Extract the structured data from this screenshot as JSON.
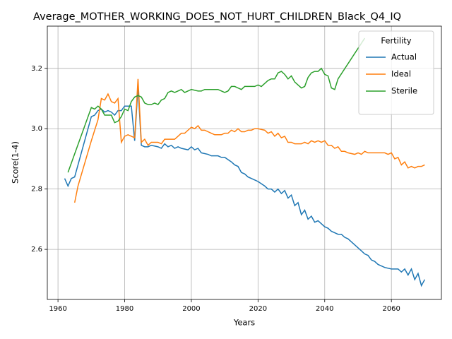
{
  "chart_data": {
    "type": "line",
    "title": "Average_MOTHER_WORKING_DOES_NOT_HURT_CHILDREN_Black_Q4_IQ",
    "xlabel": "Years",
    "ylabel": "Score(1-4)",
    "xlim": [
      1956.8,
      2075.0
    ],
    "ylim": [
      2.434,
      3.34
    ],
    "xticks": [
      1960,
      1980,
      2000,
      2020,
      2040,
      2060
    ],
    "yticks": [
      2.6,
      2.8,
      {
        "value": 3,
        "label": "3.0"
      },
      3.2
    ],
    "grid": true,
    "legend_title": "Fertility",
    "legend_loc": "upper right",
    "series": [
      {
        "name": "Actual",
        "color": "#1f77b4",
        "x": [
          1962,
          1963,
          1964,
          1965,
          1966,
          1970,
          1971,
          1972,
          1973,
          1974,
          1975,
          1976,
          1977,
          1978,
          1979,
          1980,
          1981,
          1982,
          1983,
          1984,
          1985,
          1986,
          1987,
          1988,
          1990,
          1991,
          1992,
          1993,
          1994,
          1995,
          1996,
          1997,
          1999,
          2000,
          2001,
          2002,
          2003,
          2005,
          2006,
          2008,
          2009,
          2010,
          2012,
          2013,
          2014,
          2015,
          2016,
          2017,
          2018,
          2019,
          2020,
          2022,
          2023,
          2024,
          2025,
          2026,
          2027,
          2028,
          2029,
          2030,
          2031,
          2032,
          2033,
          2034,
          2035,
          2036,
          2037,
          2038,
          2040,
          2041,
          2042,
          2043,
          2044,
          2045,
          2046,
          2047,
          2048,
          2049,
          2050,
          2051,
          2052,
          2053,
          2054,
          2055,
          2056,
          2057,
          2058,
          2060,
          2061,
          2062,
          2063,
          2064,
          2065,
          2066,
          2067,
          2068,
          2069,
          2070
        ],
        "values": [
          2.835,
          2.81,
          2.835,
          2.84,
          2.88,
          3.04,
          3.045,
          3.06,
          3.065,
          3.055,
          3.06,
          3.055,
          3.045,
          3.06,
          3.06,
          3.075,
          3.075,
          3.075,
          2.96,
          3.14,
          2.945,
          2.94,
          2.94,
          2.945,
          2.94,
          2.935,
          2.95,
          2.94,
          2.945,
          2.935,
          2.94,
          2.935,
          2.93,
          2.94,
          2.93,
          2.935,
          2.92,
          2.915,
          2.91,
          2.91,
          2.905,
          2.905,
          2.89,
          2.88,
          2.875,
          2.855,
          2.85,
          2.84,
          2.835,
          2.83,
          2.825,
          2.81,
          2.8,
          2.8,
          2.79,
          2.8,
          2.785,
          2.795,
          2.77,
          2.78,
          2.745,
          2.755,
          2.715,
          2.73,
          2.7,
          2.71,
          2.69,
          2.695,
          2.675,
          2.67,
          2.66,
          2.655,
          2.65,
          2.65,
          2.64,
          2.635,
          2.625,
          2.615,
          2.605,
          2.595,
          2.585,
          2.58,
          2.565,
          2.56,
          2.55,
          2.545,
          2.54,
          2.535,
          2.535,
          2.535,
          2.525,
          2.535,
          2.515,
          2.535,
          2.5,
          2.52,
          2.48,
          2.5
        ]
      },
      {
        "name": "Ideal",
        "color": "#ff7f0e",
        "x": [
          1965,
          1966,
          1970,
          1972,
          1973,
          1974,
          1975,
          1976,
          1977,
          1978,
          1979,
          1980,
          1981,
          1982,
          1983,
          1984,
          1985,
          1986,
          1987,
          1988,
          1990,
          1991,
          1992,
          1994,
          1995,
          1996,
          1997,
          1998,
          1999,
          2000,
          2001,
          2002,
          2003,
          2004,
          2005,
          2006,
          2007,
          2009,
          2010,
          2011,
          2012,
          2013,
          2014,
          2015,
          2016,
          2017,
          2018,
          2019,
          2020,
          2022,
          2023,
          2024,
          2025,
          2026,
          2027,
          2028,
          2029,
          2030,
          2031,
          2033,
          2034,
          2035,
          2036,
          2037,
          2038,
          2039,
          2040,
          2041,
          2042,
          2043,
          2044,
          2045,
          2046,
          2047,
          2049,
          2050,
          2051,
          2052,
          2053,
          2055,
          2057,
          2058,
          2059,
          2060,
          2061,
          2062,
          2063,
          2064,
          2065,
          2066,
          2067,
          2068,
          2069,
          2070
        ],
        "values": [
          2.755,
          2.81,
          2.96,
          3.03,
          3.1,
          3.095,
          3.115,
          3.09,
          3.085,
          3.1,
          2.955,
          2.975,
          2.98,
          2.975,
          2.97,
          3.165,
          2.955,
          2.965,
          2.945,
          2.955,
          2.955,
          2.95,
          2.965,
          2.965,
          2.965,
          2.975,
          2.985,
          2.985,
          2.995,
          3.005,
          3.0,
          3.01,
          2.995,
          2.995,
          2.99,
          2.985,
          2.98,
          2.98,
          2.985,
          2.985,
          2.995,
          2.99,
          3.0,
          2.99,
          2.99,
          2.995,
          2.995,
          3.0,
          3.0,
          2.995,
          2.985,
          2.99,
          2.975,
          2.985,
          2.97,
          2.975,
          2.955,
          2.955,
          2.95,
          2.95,
          2.955,
          2.95,
          2.96,
          2.955,
          2.96,
          2.955,
          2.96,
          2.945,
          2.945,
          2.935,
          2.94,
          2.925,
          2.925,
          2.92,
          2.915,
          2.92,
          2.915,
          2.925,
          2.92,
          2.92,
          2.92,
          2.92,
          2.915,
          2.92,
          2.9,
          2.905,
          2.88,
          2.89,
          2.87,
          2.875,
          2.87,
          2.875,
          2.875,
          2.88
        ]
      },
      {
        "name": "Sterile",
        "color": "#2ca02c",
        "x": [
          1963,
          1970,
          1971,
          1972,
          1973,
          1974,
          1975,
          1976,
          1977,
          1978,
          1979,
          1980,
          1981,
          1982,
          1983,
          1984,
          1985,
          1986,
          1987,
          1988,
          1989,
          1990,
          1991,
          1992,
          1993,
          1994,
          1995,
          1996,
          1997,
          1998,
          1999,
          2000,
          2002,
          2003,
          2004,
          2006,
          2008,
          2009,
          2010,
          2011,
          2012,
          2013,
          2014,
          2015,
          2016,
          2017,
          2018,
          2019,
          2020,
          2021,
          2022,
          2023,
          2024,
          2025,
          2026,
          2027,
          2028,
          2029,
          2030,
          2031,
          2032,
          2033,
          2034,
          2035,
          2036,
          2037,
          2038,
          2039,
          2040,
          2041,
          2042,
          2043,
          2044,
          2052
        ],
        "values": [
          2.855,
          3.07,
          3.065,
          3.075,
          3.065,
          3.045,
          3.045,
          3.045,
          3.02,
          3.025,
          3.04,
          3.065,
          3.06,
          3.09,
          3.105,
          3.11,
          3.105,
          3.085,
          3.08,
          3.08,
          3.085,
          3.08,
          3.095,
          3.1,
          3.12,
          3.125,
          3.12,
          3.125,
          3.13,
          3.12,
          3.125,
          3.13,
          3.125,
          3.125,
          3.13,
          3.13,
          3.13,
          3.125,
          3.12,
          3.125,
          3.14,
          3.14,
          3.135,
          3.13,
          3.14,
          3.14,
          3.14,
          3.14,
          3.145,
          3.14,
          3.15,
          3.16,
          3.165,
          3.165,
          3.185,
          3.19,
          3.18,
          3.165,
          3.175,
          3.155,
          3.145,
          3.135,
          3.14,
          3.17,
          3.185,
          3.19,
          3.19,
          3.2,
          3.18,
          3.175,
          3.135,
          3.13,
          3.165,
          3.3
        ]
      }
    ]
  }
}
